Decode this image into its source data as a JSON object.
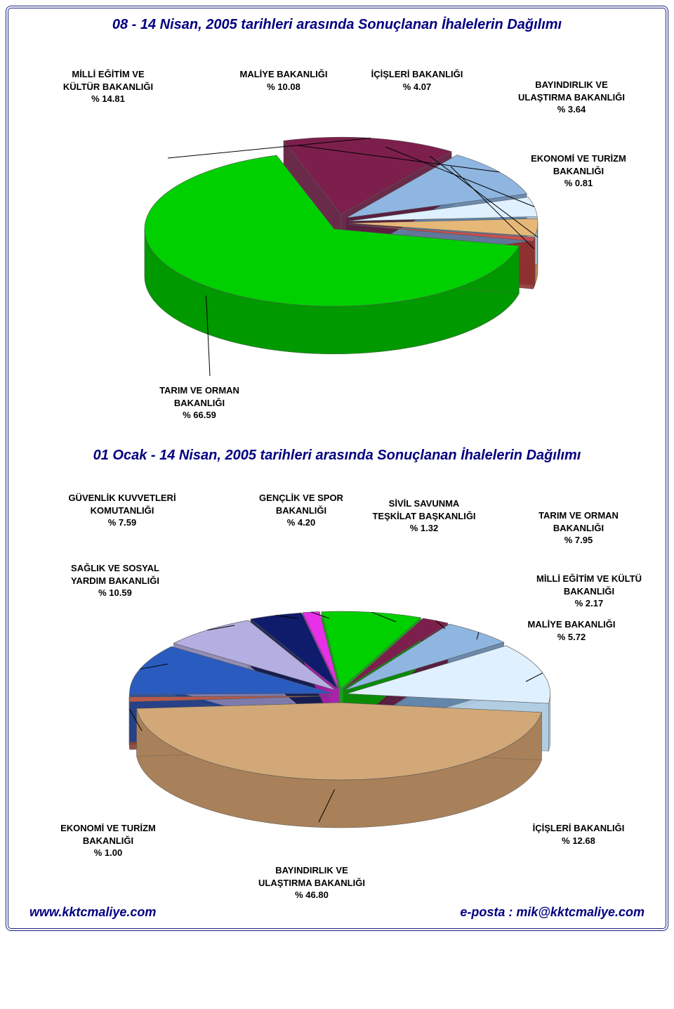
{
  "page": {
    "border_color": "#1a237e",
    "background_color": "#ffffff"
  },
  "chart1": {
    "type": "pie",
    "title": "08 - 14 Nisan, 2005 tarihleri arasında Sonuçlanan İhalelerin Dağılımı",
    "title_fontsize": 20,
    "title_color": "#000080",
    "background_color": "#ffffff",
    "slices": [
      {
        "name": "TARIM VE ORMAN BAKANLIĞI",
        "value": 66.59,
        "color": "#00d000",
        "dark": "#009900"
      },
      {
        "name": "MİLLİ EĞİTİM VE KÜLTÜR BAKANLIĞI",
        "value": 14.81,
        "color": "#7d1f4c",
        "dark": "#5a1537"
      },
      {
        "name": "MALİYE BAKANLIĞI",
        "value": 10.08,
        "color": "#8fb6e0",
        "dark": "#5d7fa5"
      },
      {
        "name": "İÇİŞLERİ BAKANLIĞI",
        "value": 4.07,
        "color": "#dff0ff",
        "dark": "#aac8df"
      },
      {
        "name": "BAYINDIRLIK VE ULAŞTIRMA BAKANLIĞI",
        "value": 3.64,
        "color": "#e6b878",
        "dark": "#b88e52"
      },
      {
        "name": "EKONOMİ VE TURİZM BAKANLIĞI",
        "value": 0.81,
        "color": "#c85050",
        "dark": "#8f3030"
      }
    ],
    "label_fontsize": 13,
    "label_weight": "bold"
  },
  "chart2": {
    "type": "pie",
    "title": "01 Ocak - 14 Nisan, 2005 tarihleri arasında Sonuçlanan İhalelerin Dağılımı",
    "title_fontsize": 20,
    "title_color": "#000080",
    "background_color": "#ffffff",
    "slices": [
      {
        "name": "BAYINDIRLIK VE ULAŞTIRMA BAKANLIĞI",
        "value": 46.8,
        "color": "#d2a878",
        "dark": "#a8815a"
      },
      {
        "name": "EKONOMİ VE TURİZM BAKANLIĞI",
        "value": 1.0,
        "color": "#b85a4a",
        "dark": "#8a4034"
      },
      {
        "name": "SAĞLIK VE SOSYAL YARDIM BAKANLIĞI",
        "value": 10.59,
        "color": "#2a5bbf",
        "dark": "#1e4290"
      },
      {
        "name": "GÜVENLİK KUVVETLERİ KOMUTANLIĞI",
        "value": 7.59,
        "color": "#b5aee0",
        "dark": "#8982b0"
      },
      {
        "name": "GENÇLİK VE SPOR BAKANLIĞI",
        "value": 4.2,
        "color": "#0f1b6b",
        "dark": "#0a1248"
      },
      {
        "name": "SİVİL SAVUNMA TEŞKİLAT BAŞKANLIĞI",
        "value": 1.32,
        "color": "#e830e8",
        "dark": "#b020b0"
      },
      {
        "name": "TARIM VE ORMAN BAKANLIĞI",
        "value": 7.95,
        "color": "#00d000",
        "dark": "#009900"
      },
      {
        "name": "MİLLİ EĞİTİM VE KÜLTÜ BAKANLIĞI",
        "value": 2.17,
        "color": "#7d1f4c",
        "dark": "#5a1537"
      },
      {
        "name": "MALİYE BAKANLIĞI",
        "value": 5.72,
        "color": "#8fb6e0",
        "dark": "#5d7fa5"
      },
      {
        "name": "İÇİŞLERİ BAKANLIĞI",
        "value": 12.68,
        "color": "#dff0ff",
        "dark": "#aac8df"
      }
    ],
    "label_fontsize": 13,
    "label_weight": "bold"
  },
  "footer": {
    "website": "www.kktcmaliye.com",
    "email_label": "e-posta : mik@kktcmaliye.com",
    "fontsize": 18,
    "color": "#000080"
  }
}
